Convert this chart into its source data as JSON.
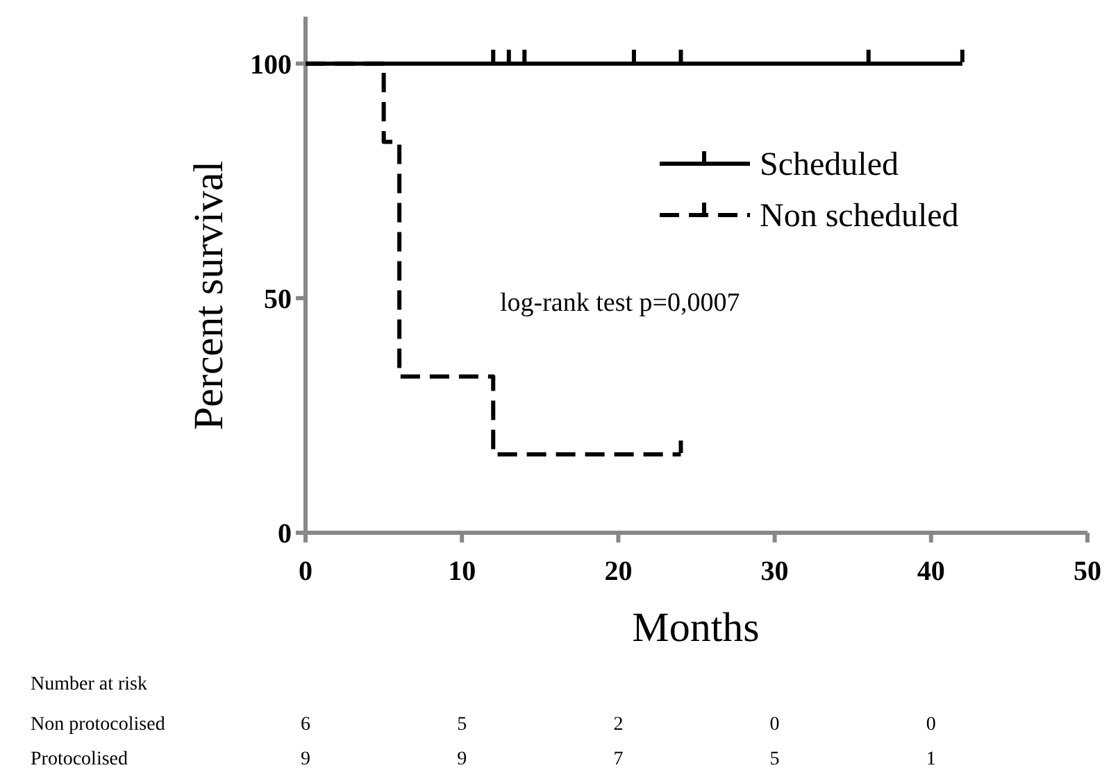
{
  "chart_data": {
    "type": "step",
    "xlabel": "Months",
    "ylabel": "Percent survival",
    "xlim": [
      0,
      50
    ],
    "xticks": [
      0,
      10,
      20,
      30,
      40,
      50
    ],
    "ylim": [
      0,
      110
    ],
    "yticks": [
      0,
      50,
      100
    ],
    "grid": false,
    "legend": "top right",
    "series": [
      {
        "name": "Scheduled",
        "color": "#000000",
        "line_style": "solid",
        "x": [
          0,
          12,
          13,
          14,
          21,
          24,
          36,
          42
        ],
        "values": [
          100,
          100,
          100,
          100,
          100,
          100,
          100,
          100
        ]
      },
      {
        "name": "Non scheduled",
        "color": "#000000",
        "line_style": "dashed",
        "x": [
          0,
          5,
          6,
          12,
          24
        ],
        "values": [
          100,
          83.3,
          33.3,
          16.7,
          16.7
        ]
      }
    ],
    "annotations": [
      "log-rank test p=0,0007",
      "Number at risk",
      "Non protocolised",
      "6",
      "5",
      "2",
      "0",
      "0",
      "Protocolised",
      "9",
      "9",
      "7",
      "5",
      "1"
    ]
  }
}
